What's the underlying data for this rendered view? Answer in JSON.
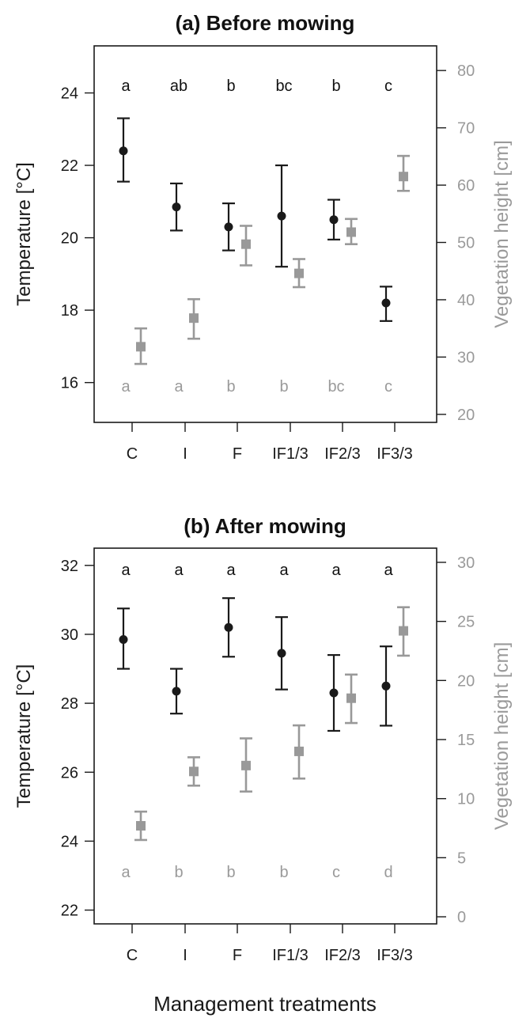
{
  "x_axis_label": "Management treatments",
  "chart_data": [
    {
      "type": "scatter",
      "title": "(a) Before mowing",
      "categories": [
        "C",
        "I",
        "F",
        "IF1/3",
        "IF2/3",
        "IF3/3"
      ],
      "ylabel": "Temperature [°C]",
      "ylabel_right": "Vegetation height [cm]",
      "ylim": [
        14.9,
        25.3
      ],
      "y2lim": [
        18.6,
        84.3
      ],
      "yticks": [
        16,
        18,
        20,
        22,
        24
      ],
      "y2ticks": [
        20,
        30,
        40,
        50,
        60,
        70,
        80
      ],
      "series": [
        {
          "axis": "left",
          "color": "#1a1a1a",
          "marker": "circle",
          "values": [
            22.4,
            20.85,
            20.3,
            20.6,
            20.5,
            18.2
          ],
          "lower": [
            21.55,
            20.2,
            19.65,
            19.2,
            19.95,
            17.7
          ],
          "upper": [
            23.3,
            21.5,
            20.95,
            22.0,
            21.05,
            18.65
          ],
          "letters": [
            "a",
            "ab",
            "b",
            "bc",
            "b",
            "c"
          ]
        },
        {
          "axis": "right",
          "color": "#999999",
          "marker": "square",
          "values": [
            31.8,
            36.8,
            49.7,
            44.6,
            51.8,
            61.5
          ],
          "lower": [
            28.8,
            33.2,
            46.0,
            42.2,
            49.7,
            59.0
          ],
          "upper": [
            35.0,
            40.1,
            52.9,
            47.1,
            54.1,
            65.1
          ],
          "letters": [
            "a",
            "a",
            "b",
            "b",
            "bc",
            "c"
          ]
        }
      ]
    },
    {
      "type": "scatter",
      "title": "(b) After mowing",
      "categories": [
        "C",
        "I",
        "F",
        "IF1/3",
        "IF2/3",
        "IF3/3"
      ],
      "ylabel": "Temperature [°C]",
      "ylabel_right": "Vegetation height [cm]",
      "ylim": [
        21.6,
        32.5
      ],
      "y2lim": [
        -0.6,
        31.2
      ],
      "yticks": [
        22,
        24,
        26,
        28,
        30,
        32
      ],
      "y2ticks": [
        0,
        5,
        10,
        15,
        20,
        25,
        30
      ],
      "series": [
        {
          "axis": "left",
          "color": "#1a1a1a",
          "marker": "circle",
          "values": [
            29.85,
            28.35,
            30.2,
            29.45,
            28.3,
            28.5
          ],
          "lower": [
            29.0,
            27.7,
            29.35,
            28.4,
            27.2,
            27.35
          ],
          "upper": [
            30.75,
            29.0,
            31.05,
            30.5,
            29.4,
            29.65
          ],
          "letters": [
            "a",
            "a",
            "a",
            "a",
            "a",
            "a"
          ]
        },
        {
          "axis": "right",
          "color": "#999999",
          "marker": "square",
          "values": [
            7.7,
            12.3,
            12.8,
            14.0,
            18.5,
            24.2
          ],
          "lower": [
            6.5,
            11.1,
            10.6,
            11.7,
            16.4,
            22.1
          ],
          "upper": [
            8.9,
            13.5,
            15.1,
            16.2,
            20.5,
            26.2
          ],
          "letters": [
            "a",
            "b",
            "b",
            "b",
            "c",
            "d"
          ]
        }
      ]
    }
  ]
}
